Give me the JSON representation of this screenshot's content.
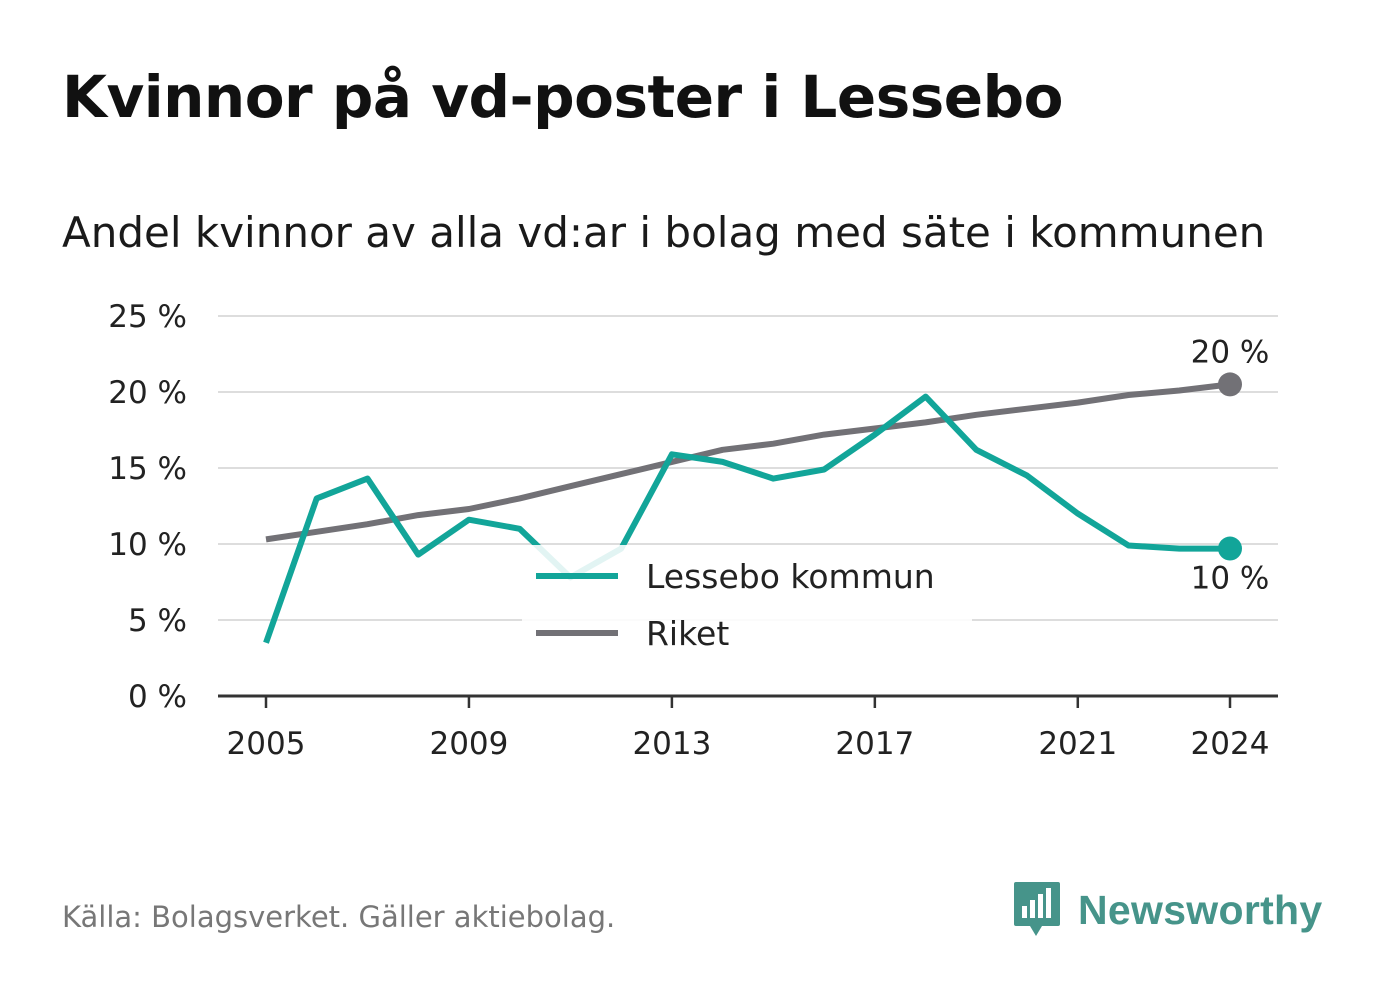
{
  "header": {
    "title": "Kvinnor på vd-poster i Lessebo",
    "subtitle": "Andel kvinnor av alla vd:ar i bolag med säte i kommunen"
  },
  "footer": {
    "source": "Källa: Bolagsverket. Gäller aktiebolag.",
    "brand": "Newsworthy",
    "brand_icon": "newsworthy-bar-chart-bubble-icon",
    "brand_color": "#46948a"
  },
  "chart_data": {
    "type": "line",
    "x": [
      2005,
      2006,
      2007,
      2008,
      2009,
      2010,
      2011,
      2012,
      2013,
      2014,
      2015,
      2016,
      2017,
      2018,
      2019,
      2020,
      2021,
      2022,
      2023,
      2024
    ],
    "series": [
      {
        "name": "Lessebo kommun",
        "color": "#12a599",
        "values": [
          3.5,
          13.0,
          14.3,
          9.3,
          11.6,
          11.0,
          7.8,
          9.7,
          15.9,
          15.4,
          14.3,
          14.9,
          17.2,
          19.7,
          16.2,
          14.5,
          12.0,
          9.9,
          9.7,
          9.7
        ]
      },
      {
        "name": "Riket",
        "color": "#727176",
        "values": [
          10.3,
          10.8,
          11.3,
          11.9,
          12.3,
          13.0,
          13.8,
          14.6,
          15.4,
          16.2,
          16.6,
          17.2,
          17.6,
          18.0,
          18.5,
          18.9,
          19.3,
          19.8,
          20.1,
          20.5
        ]
      }
    ],
    "end_labels": [
      "10 %",
      "20 %"
    ],
    "y_ticks": [
      "0 %",
      "5 %",
      "10 %",
      "15 %",
      "20 %",
      "25 %"
    ],
    "x_ticks": [
      "2005",
      "2009",
      "2013",
      "2017",
      "2021",
      "2024"
    ],
    "x_tick_values": [
      2005,
      2009,
      2013,
      2017,
      2021,
      2024
    ],
    "ylim": [
      0,
      25
    ],
    "xlim": [
      2005,
      2024
    ],
    "grid": true,
    "legend_position": "bottom-center",
    "grid_color": "#dddddd",
    "axis_color": "#333333"
  }
}
